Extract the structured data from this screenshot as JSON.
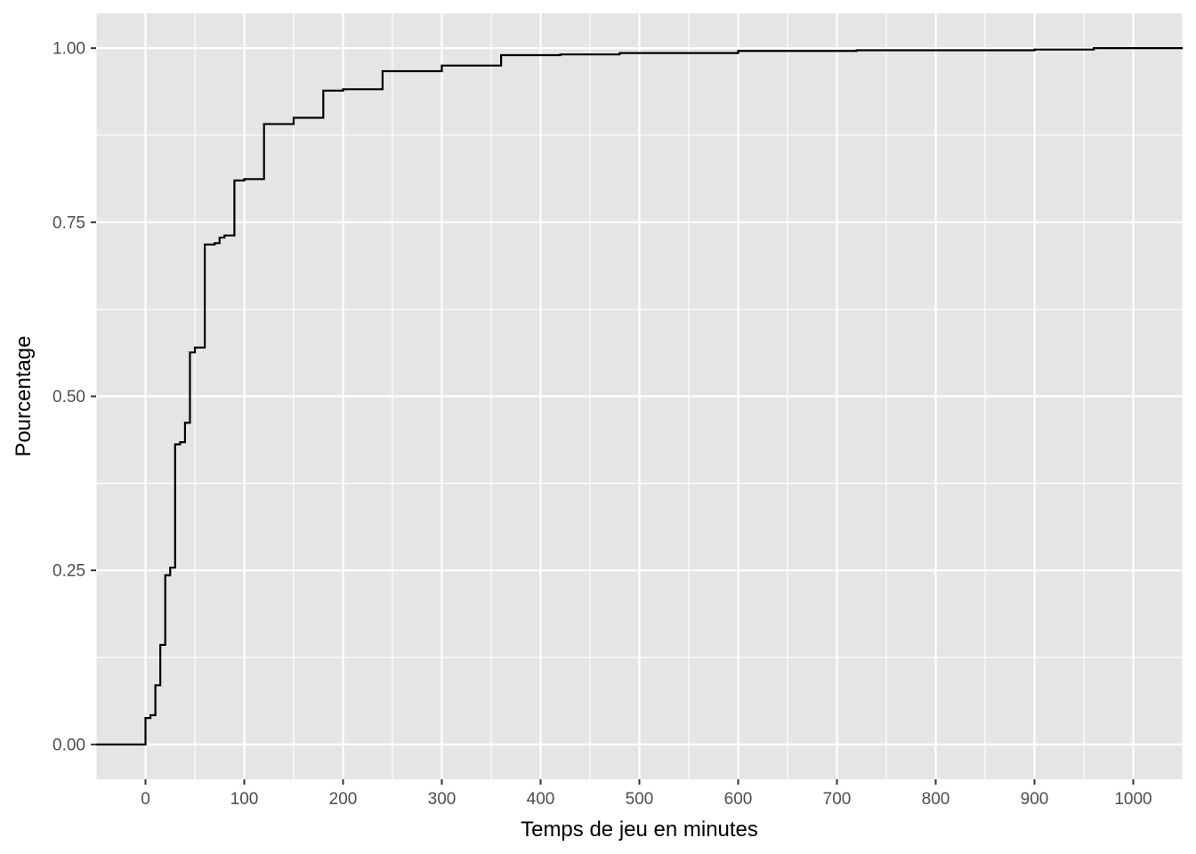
{
  "chart_data": {
    "type": "line",
    "subtype": "step (empirical cumulative distribution)",
    "title": "",
    "xlabel": "Temps de jeu en minutes",
    "ylabel": "Pourcentage",
    "xlim": [
      -50,
      1050
    ],
    "ylim": [
      -0.05,
      1.05
    ],
    "x_ticks": [
      0,
      100,
      200,
      300,
      400,
      500,
      600,
      700,
      800,
      900,
      1000
    ],
    "x_tick_labels": [
      "0",
      "100",
      "200",
      "300",
      "400",
      "500",
      "600",
      "700",
      "800",
      "900",
      "1000"
    ],
    "y_ticks": [
      0,
      0.25,
      0.5,
      0.75,
      1.0
    ],
    "y_tick_labels": [
      "0.00",
      "0.25",
      "0.50",
      "0.75",
      "1.00"
    ],
    "grid": true,
    "legend": "none",
    "colors": {
      "panel_background": "#e5e5e5",
      "grid_line": "#ffffff",
      "line": "#000000",
      "tick_text": "#4d4d4d",
      "axis_title_text": "#000000"
    },
    "series": [
      {
        "x": [
          0,
          5,
          10,
          15,
          20,
          25,
          30,
          35,
          40,
          45,
          50,
          60,
          70,
          75,
          80,
          90,
          100,
          120,
          150,
          180,
          200,
          240,
          300,
          360,
          420,
          480,
          600,
          720,
          900,
          960,
          1050
        ],
        "y": [
          0.038,
          0.042,
          0.085,
          0.143,
          0.243,
          0.254,
          0.431,
          0.434,
          0.462,
          0.563,
          0.57,
          0.718,
          0.72,
          0.728,
          0.731,
          0.81,
          0.812,
          0.891,
          0.9,
          0.939,
          0.941,
          0.967,
          0.975,
          0.99,
          0.991,
          0.993,
          0.996,
          0.997,
          0.998,
          1.0,
          1.0
        ]
      }
    ]
  }
}
